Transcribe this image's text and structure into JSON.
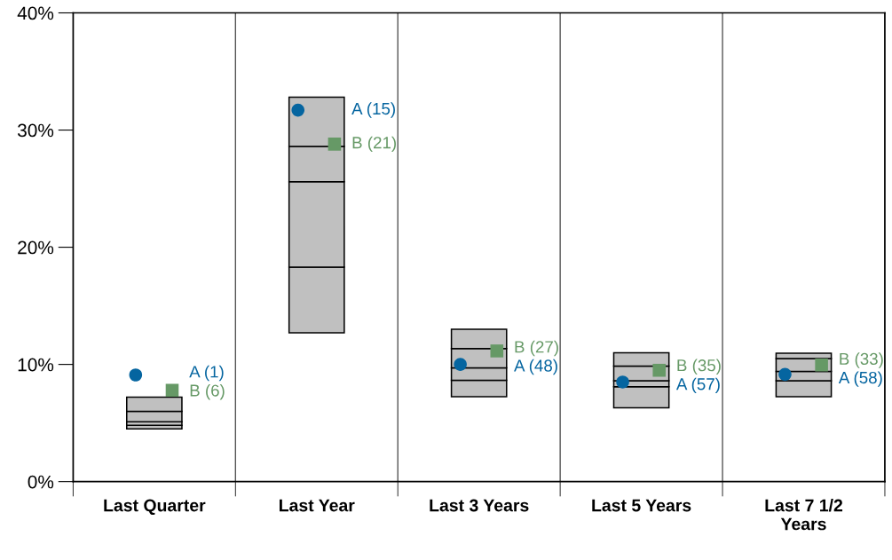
{
  "chart_data": {
    "type": "bar",
    "categories": [
      "Last Quarter",
      "Last Year",
      "Last 3 Years",
      "Last 5 Years",
      "Last 7 1/2 Years"
    ],
    "series": [
      {
        "color": "#c0c0c0",
        "base": [
          4.5,
          12.7,
          7.25,
          6.3,
          7.25
        ],
        "values": [
          0.3,
          5.6,
          1.4,
          1.8,
          1.35
        ]
      },
      {
        "color": "#c0c0c0",
        "base": [
          4.8,
          18.3,
          8.65,
          8.1,
          8.6
        ],
        "values": [
          0.3,
          7.3,
          1.05,
          0.5,
          0.8
        ]
      },
      {
        "color": "#c0c0c0",
        "base": [
          5.1,
          25.6,
          9.7,
          8.6,
          9.4
        ],
        "values": [
          0.9,
          3.0,
          1.65,
          1.25,
          1.1
        ]
      },
      {
        "color": "#c0c0c0",
        "base": [
          6.0,
          28.6,
          11.35,
          9.85,
          10.5
        ],
        "values": [
          1.2,
          4.2,
          1.65,
          1.15,
          0.45
        ]
      },
      {
        "type": "scatter",
        "marker": "circle",
        "color": "#0565a0",
        "values": [
          9.1,
          31.7,
          10.0,
          8.5,
          9.15
        ]
      },
      {
        "type": "scatter",
        "marker": "square",
        "color": "#669966",
        "values": [
          7.8,
          28.8,
          11.15,
          9.5,
          9.95
        ]
      }
    ],
    "annotations": [
      "A (1)",
      "A (15)",
      "A (48)",
      "A (57)",
      "A (58)",
      "B (6)",
      "B (21)",
      "B (27)",
      "B (35)",
      "B (33)"
    ],
    "ylim": [
      0,
      40
    ],
    "yticks": [
      {
        "value": 0,
        "label": "0%"
      },
      {
        "value": 10,
        "label": "10%"
      },
      {
        "value": 20,
        "label": "20%"
      },
      {
        "value": 30,
        "label": "30%"
      },
      {
        "value": 40,
        "label": "40%"
      }
    ],
    "grid": "x"
  }
}
